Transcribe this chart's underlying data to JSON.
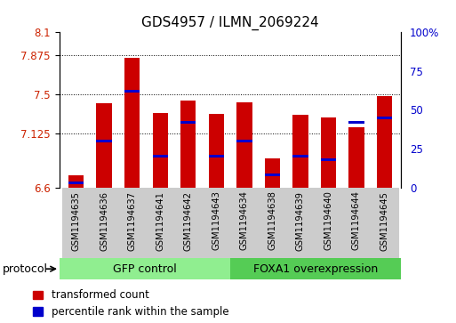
{
  "title": "GDS4957 / ILMN_2069224",
  "samples": [
    "GSM1194635",
    "GSM1194636",
    "GSM1194637",
    "GSM1194641",
    "GSM1194642",
    "GSM1194643",
    "GSM1194634",
    "GSM1194638",
    "GSM1194639",
    "GSM1194640",
    "GSM1194644",
    "GSM1194645"
  ],
  "transformed_counts": [
    6.72,
    7.41,
    7.85,
    7.32,
    7.44,
    7.31,
    7.42,
    6.88,
    7.3,
    7.28,
    7.18,
    7.48
  ],
  "percentile_ranks": [
    3,
    30,
    62,
    20,
    42,
    20,
    30,
    8,
    20,
    18,
    42,
    45
  ],
  "ylim_left": [
    6.6,
    8.1
  ],
  "ylim_right": [
    0,
    100
  ],
  "yticks_left": [
    6.6,
    7.125,
    7.5,
    7.875,
    8.1
  ],
  "yticks_right": [
    0,
    25,
    50,
    75,
    100
  ],
  "ytick_labels_left": [
    "6.6",
    "7.125",
    "7.5",
    "7.875",
    "8.1"
  ],
  "ytick_labels_right": [
    "0",
    "25",
    "50",
    "75",
    "100%"
  ],
  "hlines": [
    7.125,
    7.5,
    7.875
  ],
  "bar_color": "#cc0000",
  "marker_color": "#0000cc",
  "bar_bottom": 6.6,
  "bar_width": 0.55,
  "gfp_color": "#90ee90",
  "foxa_color": "#55cc55",
  "gray_cell_color": "#cccccc",
  "cell_edge_color": "#ffffff",
  "tick_label_color_left": "#cc2200",
  "tick_label_color_right": "#0000cc",
  "title_fontsize": 11,
  "tick_fontsize": 8.5,
  "sample_fontsize": 7.2,
  "group_fontsize": 9,
  "legend_fontsize": 8.5,
  "bg_color": "#ffffff",
  "protocol_label": "protocol"
}
